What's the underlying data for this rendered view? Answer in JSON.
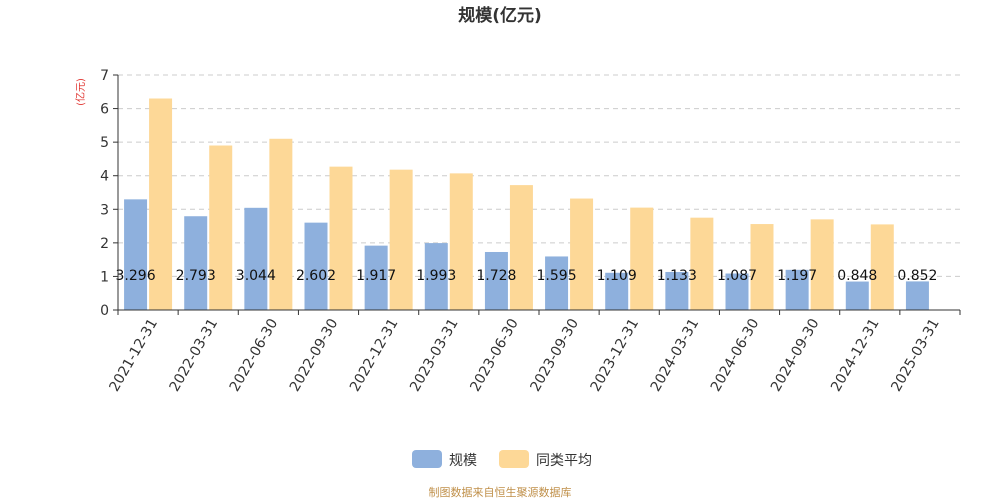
{
  "chart_data": {
    "type": "bar",
    "title": "规模(亿元)",
    "ylabel": "(亿元)",
    "ylim": [
      0,
      7
    ],
    "yticks": [
      0,
      1,
      2,
      3,
      4,
      5,
      6,
      7
    ],
    "grid": true,
    "legend_position": "bottom",
    "categories": [
      "2021-12-31",
      "2022-03-31",
      "2022-06-30",
      "2022-09-30",
      "2022-12-31",
      "2023-03-31",
      "2023-06-30",
      "2023-09-30",
      "2023-12-31",
      "2024-03-31",
      "2024-06-30",
      "2024-09-30",
      "2024-12-31",
      "2025-03-31"
    ],
    "series": [
      {
        "name": "规模",
        "color": "#8eb0dd",
        "values": [
          3.296,
          2.793,
          3.044,
          2.602,
          1.917,
          1.993,
          1.728,
          1.595,
          1.109,
          1.133,
          1.087,
          1.197,
          0.848,
          0.852
        ],
        "labels": [
          "3.296",
          "2.793",
          "3.044",
          "2.602",
          "1.917",
          "1.993",
          "1.728",
          "1.595",
          "1.109",
          "1.133",
          "1.087",
          "1.197",
          "0.848",
          "0.852"
        ]
      },
      {
        "name": "同类平均",
        "color": "#fdd897",
        "values": [
          6.3,
          4.9,
          5.1,
          4.27,
          4.18,
          4.07,
          3.72,
          3.32,
          3.05,
          2.75,
          2.56,
          2.7,
          2.55,
          null
        ]
      }
    ]
  },
  "footer": {
    "source": "制图数据来自恒生聚源数据库"
  }
}
